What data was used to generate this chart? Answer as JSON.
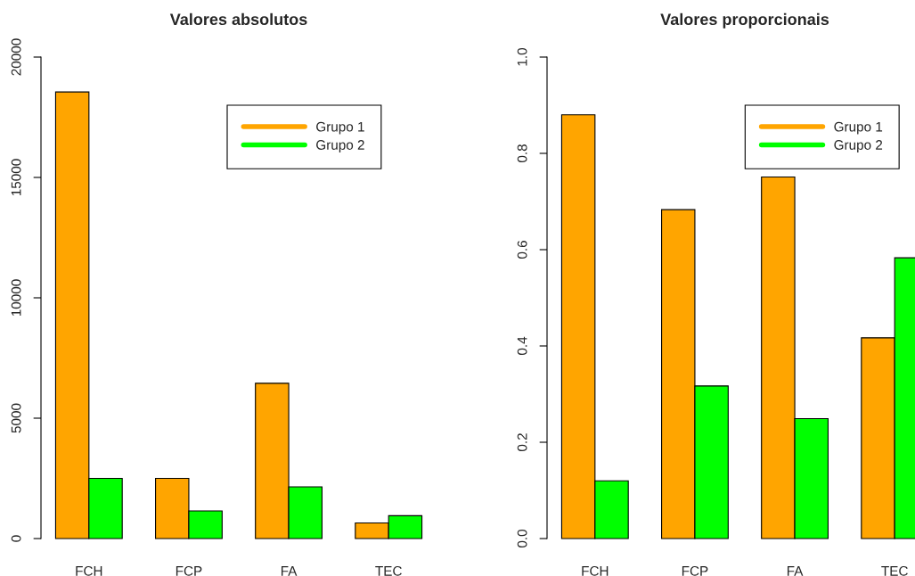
{
  "chart_data": [
    {
      "type": "bar",
      "title": "Valores absolutos",
      "categories": [
        "FCH",
        "FCP",
        "FA",
        "TEC"
      ],
      "series": [
        {
          "name": "Grupo 1",
          "color": "#ffa500",
          "values": [
            18550,
            2500,
            6450,
            650
          ]
        },
        {
          "name": "Grupo 2",
          "color": "#00ff00",
          "values": [
            2500,
            1150,
            2150,
            950
          ]
        }
      ],
      "ylim": [
        0,
        20000
      ],
      "yticks": [
        0,
        5000,
        10000,
        15000,
        20000
      ],
      "legend": "top right",
      "grid": false
    },
    {
      "type": "bar",
      "title": "Valores proporcionais",
      "categories": [
        "FCH",
        "FCP",
        "FA",
        "TEC"
      ],
      "series": [
        {
          "name": "Grupo 1",
          "color": "#ffa500",
          "values": [
            0.88,
            0.683,
            0.751,
            0.417
          ]
        },
        {
          "name": "Grupo 2",
          "color": "#00ff00",
          "values": [
            0.12,
            0.317,
            0.249,
            0.583
          ]
        }
      ],
      "ylim": [
        0,
        1.0
      ],
      "yticks": [
        {
          "value": 0,
          "label": "0.0"
        },
        0.2,
        0.4,
        0.6,
        0.8,
        {
          "value": 1.0,
          "label": "1.0"
        }
      ],
      "legend": "top right",
      "grid": false
    }
  ]
}
